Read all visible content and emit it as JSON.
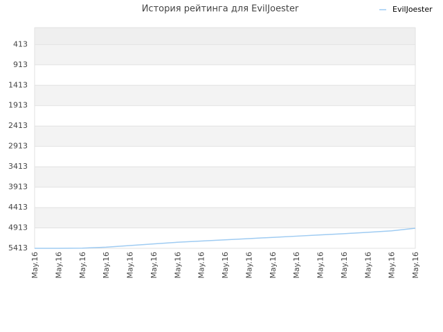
{
  "chart_data": {
    "type": "line",
    "title": "История рейтинга для EvilJoester",
    "categories": [
      "May.16",
      "May.16",
      "May.16",
      "May.16",
      "May.16",
      "May.16",
      "May.16",
      "May.16",
      "May.16",
      "May.16",
      "May.16",
      "May.16",
      "May.16",
      "May.16",
      "May.16",
      "May.16",
      "May.16"
    ],
    "series": [
      {
        "name": "EvilJoester",
        "color": "#9ecbf2",
        "values": [
          5413,
          5412,
          5408,
          5385,
          5345,
          5305,
          5265,
          5235,
          5205,
          5175,
          5145,
          5115,
          5085,
          5055,
          5020,
          4985,
          4920
        ]
      }
    ],
    "ylim": [
      5413,
      0
    ],
    "yticks": [
      413,
      913,
      1413,
      1913,
      2413,
      2913,
      3413,
      3913,
      4413,
      4913,
      5413
    ],
    "grid": true,
    "legend": "top-right"
  }
}
